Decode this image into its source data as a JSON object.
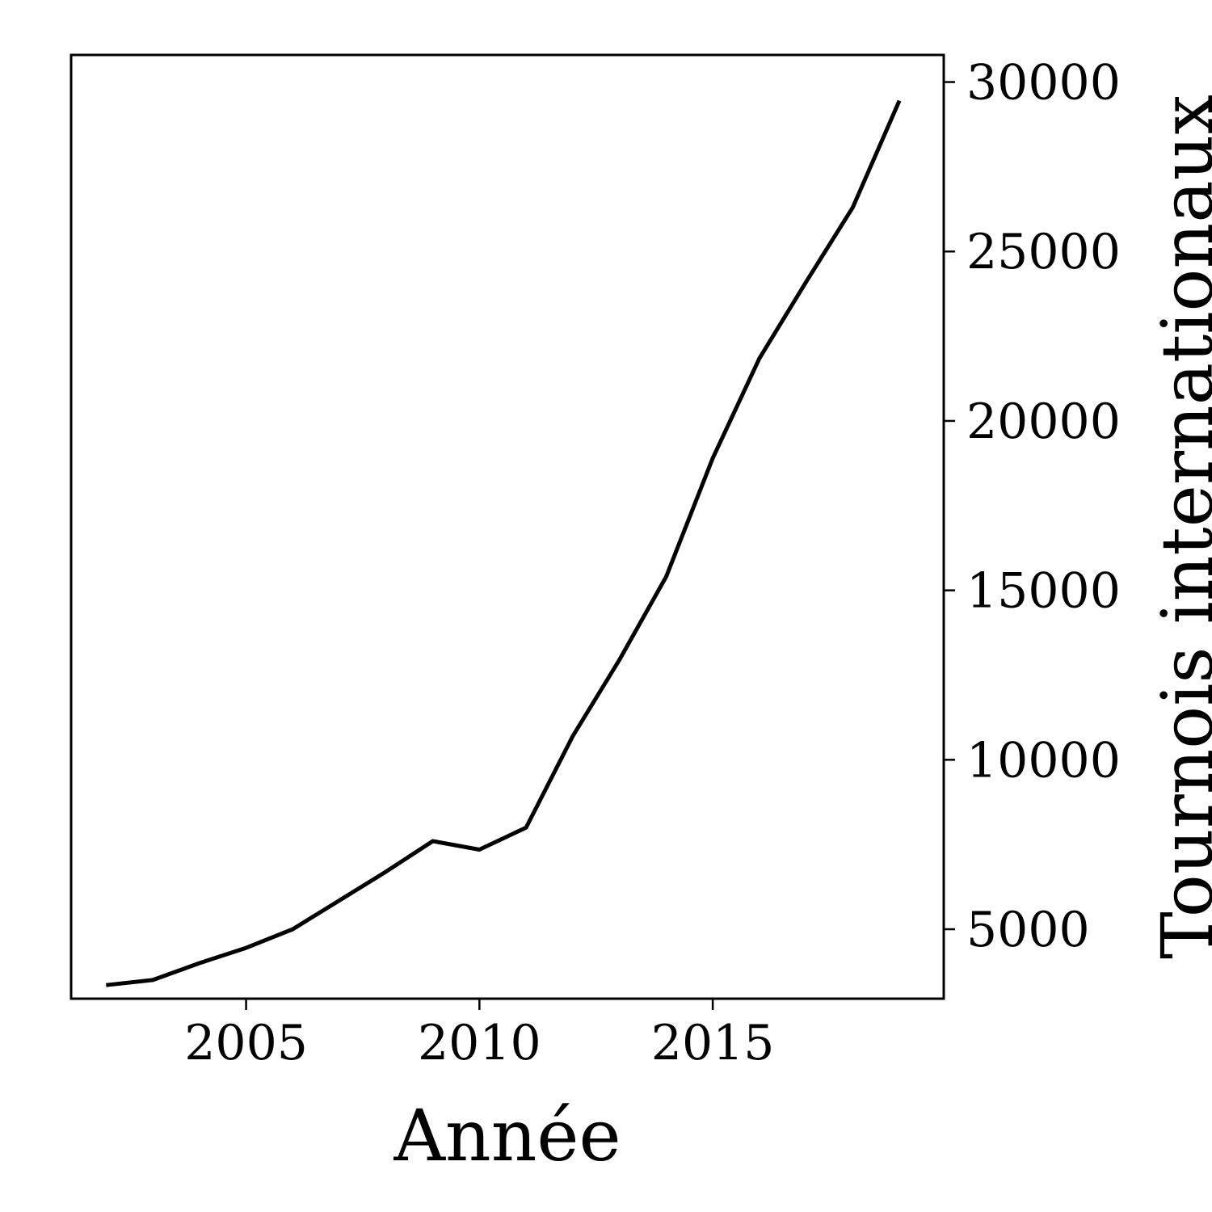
{
  "chart_data": {
    "type": "line",
    "title": "",
    "xlabel": "Année",
    "ylabel": "Tournois internationaux",
    "x": [
      2002,
      2003,
      2004,
      2005,
      2006,
      2007,
      2008,
      2009,
      2010,
      2011,
      2012,
      2013,
      2014,
      2015,
      2016,
      2017,
      2018,
      2019
    ],
    "series": [
      {
        "values": [
          3350,
          3500,
          4000,
          4450,
          5000,
          5850,
          6700,
          7600,
          7350,
          8000,
          10700,
          12950,
          15400,
          18900,
          21850,
          24100,
          26300,
          29450
        ]
      }
    ],
    "xlim": [
      2001.25,
      2019.95
    ],
    "ylim": [
      2950,
      30800
    ],
    "xticks": [
      2005,
      2010,
      2015
    ],
    "yticks": [
      5000,
      10000,
      15000,
      20000,
      25000,
      30000
    ],
    "y_axis_side": "right",
    "grid": false,
    "legend": "none",
    "line_color": "#000000"
  }
}
